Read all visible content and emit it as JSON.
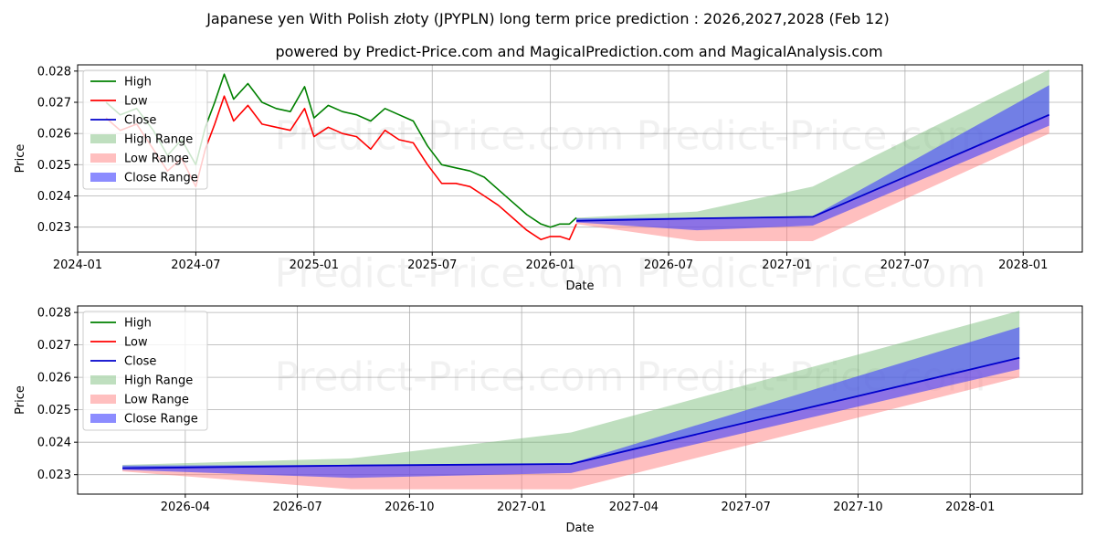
{
  "title": "Japanese yen With Polish złoty (JPYPLN) long term price prediction : 2026,2027,2028 (Feb 12)",
  "subtitle": "powered by Predict-Price.com and MagicalPrediction.com and MagicalAnalysis.com",
  "watermark": "Predict-Price.com",
  "colors": {
    "high": "#008000",
    "low": "#ff0000",
    "close": "#0000cc",
    "high_range": "#7fbf7f",
    "low_range": "#ff8080",
    "close_range": "#4040ff"
  },
  "legend": [
    "High",
    "Low",
    "Close",
    "High Range",
    "Low Range",
    "Close Range"
  ],
  "chart_data": [
    {
      "type": "line",
      "xlabel": "Date",
      "ylabel": "Price",
      "xlim": [
        2024.0,
        2028.25
      ],
      "ylim": [
        0.0222,
        0.0282
      ],
      "grid": true,
      "legend_position": "top-left",
      "x_ticks": [
        {
          "x": 2024.0,
          "label": "2024-01"
        },
        {
          "x": 2024.5,
          "label": "2024-07"
        },
        {
          "x": 2025.0,
          "label": "2025-01"
        },
        {
          "x": 2025.5,
          "label": "2025-07"
        },
        {
          "x": 2026.0,
          "label": "2026-01"
        },
        {
          "x": 2026.5,
          "label": "2026-07"
        },
        {
          "x": 2027.0,
          "label": "2027-01"
        },
        {
          "x": 2027.5,
          "label": "2027-07"
        },
        {
          "x": 2028.0,
          "label": "2028-01"
        }
      ],
      "y_ticks": [
        {
          "y": 0.023,
          "label": "0.023"
        },
        {
          "y": 0.024,
          "label": "0.024"
        },
        {
          "y": 0.025,
          "label": "0.025"
        },
        {
          "y": 0.026,
          "label": "0.026"
        },
        {
          "y": 0.027,
          "label": "0.027"
        },
        {
          "y": 0.028,
          "label": "0.028"
        }
      ],
      "history": {
        "x": [
          2024.12,
          2024.18,
          2024.25,
          2024.32,
          2024.38,
          2024.44,
          2024.5,
          2024.54,
          2024.58,
          2024.62,
          2024.66,
          2024.72,
          2024.78,
          2024.84,
          2024.9,
          2024.96,
          2025.0,
          2025.06,
          2025.12,
          2025.18,
          2025.24,
          2025.3,
          2025.36,
          2025.42,
          2025.48,
          2025.54,
          2025.6,
          2025.66,
          2025.72,
          2025.78,
          2025.84,
          2025.9,
          2025.96,
          2026.0,
          2026.04,
          2026.08,
          2026.11
        ],
        "high": [
          0.027,
          0.0266,
          0.0268,
          0.0261,
          0.0253,
          0.0258,
          0.025,
          0.0262,
          0.027,
          0.0279,
          0.0271,
          0.0276,
          0.027,
          0.0268,
          0.0267,
          0.0275,
          0.0265,
          0.0269,
          0.0267,
          0.0266,
          0.0264,
          0.0268,
          0.0266,
          0.0264,
          0.0256,
          0.025,
          0.0249,
          0.0248,
          0.0246,
          0.0242,
          0.0238,
          0.0234,
          0.0231,
          0.023,
          0.0231,
          0.0231,
          0.0233
        ],
        "low": [
          0.0265,
          0.0261,
          0.0263,
          0.0255,
          0.0248,
          0.0252,
          0.0243,
          0.0255,
          0.0263,
          0.0272,
          0.0264,
          0.0269,
          0.0263,
          0.0262,
          0.0261,
          0.0268,
          0.0259,
          0.0262,
          0.026,
          0.0259,
          0.0255,
          0.0261,
          0.0258,
          0.0257,
          0.025,
          0.0244,
          0.0244,
          0.0243,
          0.024,
          0.0237,
          0.0233,
          0.0229,
          0.0226,
          0.0227,
          0.0227,
          0.0226,
          0.0231
        ]
      },
      "prediction": {
        "x": [
          2026.11,
          2026.62,
          2027.11,
          2028.11
        ],
        "close": [
          0.0232,
          0.02328,
          0.02333,
          0.0266
        ],
        "high_upper": [
          0.0233,
          0.0235,
          0.0243,
          0.02805
        ],
        "low_lower": [
          0.0231,
          0.02255,
          0.02255,
          0.026
        ],
        "close_upper": [
          0.02328,
          0.0233,
          0.02335,
          0.02755
        ],
        "close_lower": [
          0.02315,
          0.0229,
          0.02305,
          0.02625
        ]
      }
    },
    {
      "type": "line",
      "xlabel": "Date",
      "ylabel": "Price",
      "xlim": [
        2026.01,
        2028.25
      ],
      "ylim": [
        0.0224,
        0.0282
      ],
      "grid": true,
      "legend_position": "top-left",
      "x_ticks": [
        {
          "x": 2026.25,
          "label": "2026-04"
        },
        {
          "x": 2026.5,
          "label": "2026-07"
        },
        {
          "x": 2026.75,
          "label": "2026-10"
        },
        {
          "x": 2027.0,
          "label": "2027-01"
        },
        {
          "x": 2027.25,
          "label": "2027-04"
        },
        {
          "x": 2027.5,
          "label": "2027-07"
        },
        {
          "x": 2027.75,
          "label": "2027-10"
        },
        {
          "x": 2028.0,
          "label": "2028-01"
        }
      ],
      "y_ticks": [
        {
          "y": 0.023,
          "label": "0.023"
        },
        {
          "y": 0.024,
          "label": "0.024"
        },
        {
          "y": 0.025,
          "label": "0.025"
        },
        {
          "y": 0.026,
          "label": "0.026"
        },
        {
          "y": 0.027,
          "label": "0.027"
        },
        {
          "y": 0.028,
          "label": "0.028"
        }
      ],
      "prediction": {
        "x": [
          2026.11,
          2026.62,
          2027.11,
          2028.11
        ],
        "close": [
          0.0232,
          0.02328,
          0.02333,
          0.0266
        ],
        "high_upper": [
          0.0233,
          0.0235,
          0.0243,
          0.02805
        ],
        "low_lower": [
          0.0231,
          0.02255,
          0.02255,
          0.026
        ],
        "close_upper": [
          0.02328,
          0.0233,
          0.02335,
          0.02755
        ],
        "close_lower": [
          0.02315,
          0.0229,
          0.02305,
          0.02625
        ]
      }
    }
  ]
}
